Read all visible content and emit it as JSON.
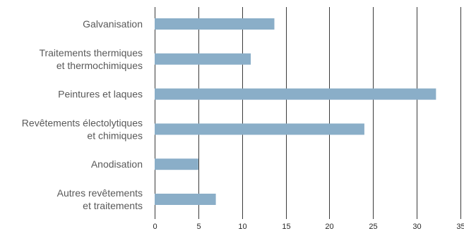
{
  "chart_data": {
    "type": "bar",
    "orientation": "horizontal",
    "categories": [
      [
        "Galvanisation"
      ],
      [
        "Traitements thermiques",
        "et thermochimiques"
      ],
      [
        "Peintures et laques"
      ],
      [
        "Revêtements électolytiques",
        "et chimiques"
      ],
      [
        "Anodisation"
      ],
      [
        "Autres revêtements",
        "et traitements"
      ]
    ],
    "values": [
      13.7,
      11,
      32.2,
      24,
      5,
      7
    ],
    "xlim": [
      0,
      35
    ],
    "xticks": [
      0,
      5,
      10,
      15,
      20,
      25,
      30,
      35
    ],
    "grid": "vertical",
    "bar_color": "#8aaec8",
    "title": "",
    "xlabel": "",
    "ylabel": ""
  }
}
